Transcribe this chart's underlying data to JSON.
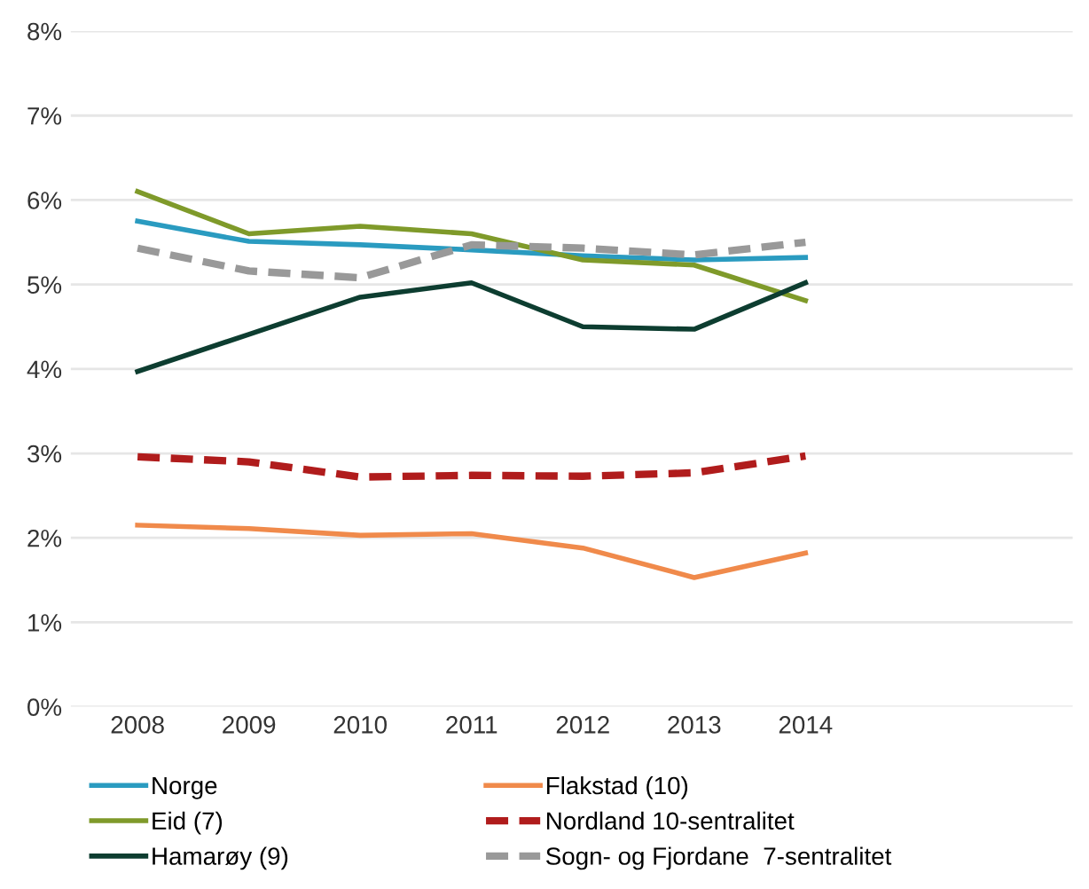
{
  "chart_data": {
    "type": "line",
    "categories": [
      "2008",
      "2009",
      "2010",
      "2011",
      "2012",
      "2013",
      "2014",
      null,
      null
    ],
    "ylim": [
      0,
      8
    ],
    "yticks": [
      {
        "value": 0,
        "label": "0%"
      },
      {
        "value": 1,
        "label": "1%"
      },
      {
        "value": 2,
        "label": "2%"
      },
      {
        "value": 3,
        "label": "3%"
      },
      {
        "value": 4,
        "label": "4%"
      },
      {
        "value": 5,
        "label": "5%"
      },
      {
        "value": 6,
        "label": "6%"
      },
      {
        "value": 7,
        "label": "7%"
      },
      {
        "value": 8,
        "label": "8%"
      }
    ],
    "grid": "y",
    "legend": "bottom",
    "marker": "none",
    "series": [
      {
        "name": "Norge",
        "color": "#2a9bc0",
        "line_style": "solid",
        "values": [
          5.75,
          5.51,
          5.47,
          5.41,
          5.34,
          5.29,
          5.32,
          null,
          null
        ]
      },
      {
        "name": "Eid (7)",
        "color": "#7f9a2a",
        "line_style": "solid",
        "values": [
          6.1,
          5.6,
          5.69,
          5.6,
          5.29,
          5.23,
          4.81,
          null,
          null
        ]
      },
      {
        "name": "Hamarøy (9)",
        "color": "#0d3d30",
        "line_style": "solid",
        "values": [
          3.97,
          4.41,
          4.85,
          5.02,
          4.5,
          4.47,
          5.02,
          null,
          null
        ]
      },
      {
        "name": "Flakstad (10)",
        "color": "#f08a4b",
        "line_style": "solid",
        "values": [
          2.15,
          2.11,
          2.03,
          2.05,
          1.88,
          1.53,
          1.82,
          null,
          null
        ]
      },
      {
        "name": "Nordland 10-sentralitet",
        "color": "#b01c1c",
        "line_style": "dashed",
        "values": [
          2.96,
          2.9,
          2.72,
          2.74,
          2.73,
          2.77,
          2.97,
          null,
          null
        ]
      },
      {
        "name": "Sogn- og Fjordane  7-sentralitet",
        "color": "#999999",
        "line_style": "dashed",
        "values": [
          5.43,
          5.16,
          5.08,
          5.47,
          5.43,
          5.35,
          5.5,
          null,
          null
        ]
      }
    ]
  }
}
